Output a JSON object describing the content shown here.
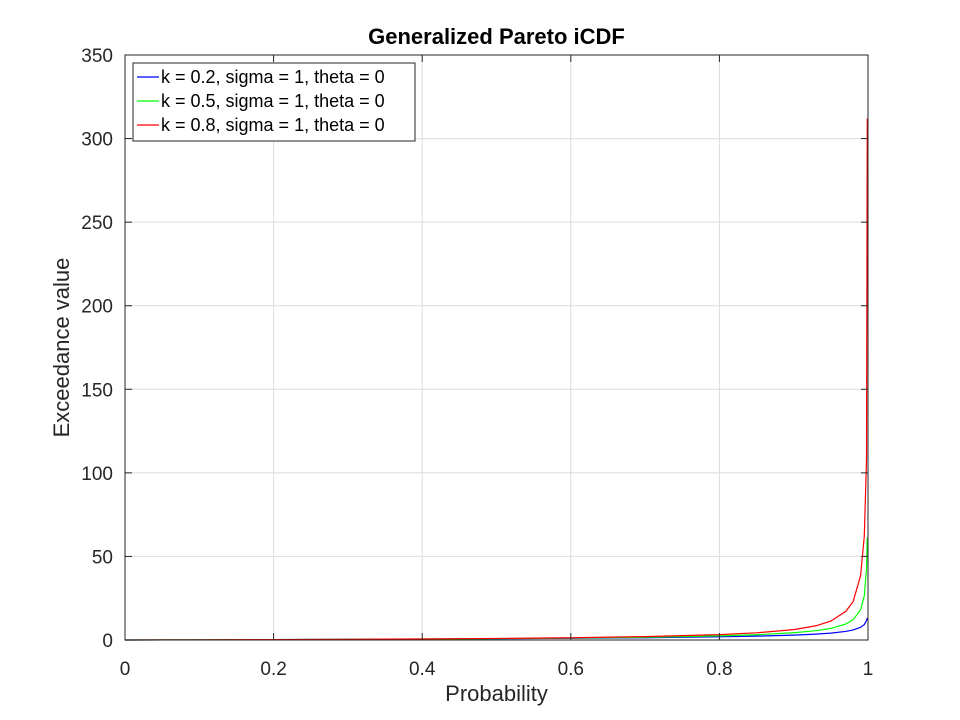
{
  "chart_data": {
    "type": "line",
    "title": "Generalized Pareto iCDF",
    "xlabel": "Probability",
    "ylabel": "Exceedance value",
    "xlim": [
      0,
      1
    ],
    "ylim": [
      0,
      350
    ],
    "xticks": [
      0,
      0.2,
      0.4,
      0.6,
      0.8,
      1
    ],
    "xtick_labels": [
      "0",
      "0.2",
      "0.4",
      "0.6",
      "0.8",
      "1"
    ],
    "yticks": [
      0,
      50,
      100,
      150,
      200,
      250,
      300,
      350
    ],
    "ytick_labels": [
      "0",
      "50",
      "100",
      "150",
      "200",
      "250",
      "300",
      "350"
    ],
    "grid": true,
    "legend_position": "top-left",
    "x": [
      0,
      0.1,
      0.2,
      0.3,
      0.4,
      0.5,
      0.6,
      0.7,
      0.8,
      0.85,
      0.9,
      0.93,
      0.95,
      0.97,
      0.98,
      0.99,
      0.995,
      0.998,
      0.999
    ],
    "series": [
      {
        "name": "k = 0.2, sigma = 1, theta = 0",
        "color": "#0000ff",
        "values": [
          0,
          0.11,
          0.23,
          0.37,
          0.54,
          0.74,
          1.0,
          1.36,
          1.9,
          2.3,
          2.92,
          3.51,
          4.1,
          5.12,
          6.03,
          7.56,
          9.22,
          11.58,
          13.2
        ]
      },
      {
        "name": "k = 0.5, sigma = 1, theta = 0",
        "color": "#00ff00",
        "values": [
          0,
          0.11,
          0.24,
          0.39,
          0.58,
          0.83,
          1.16,
          1.65,
          2.47,
          3.16,
          4.32,
          5.57,
          6.94,
          9.55,
          12.14,
          18.0,
          26.28,
          42.72,
          61.25
        ]
      },
      {
        "name": "k = 0.8, sigma = 1, theta = 0",
        "color": "#ff0000",
        "values": [
          0,
          0.11,
          0.24,
          0.41,
          0.63,
          0.93,
          1.35,
          2.04,
          3.22,
          4.31,
          6.2,
          8.52,
          11.32,
          17.1,
          23.0,
          38.5,
          62.0,
          107.7,
          312.0
        ]
      }
    ]
  }
}
